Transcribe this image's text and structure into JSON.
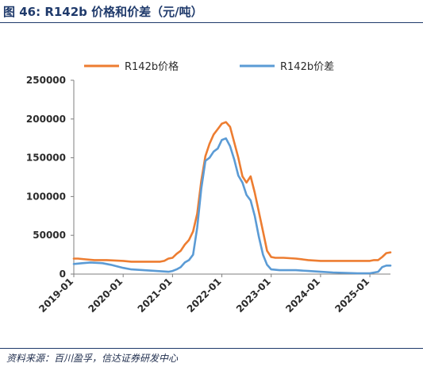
{
  "figure_title": "图 46:  R142b 价格和价差（元/吨）",
  "source_note": "资料来源：百川盈孚，信达证券研发中心",
  "colors": {
    "price": "#ED7D31",
    "spread": "#5B9BD5",
    "title": "#1F3A6B"
  },
  "chart_data": {
    "type": "line",
    "title": "",
    "xlabel": "",
    "ylabel": "",
    "ylim": [
      0,
      250000
    ],
    "y_ticks": [
      "0",
      "50000",
      "100000",
      "150000",
      "200000",
      "250000"
    ],
    "x_ticks": [
      "2019-01",
      "2020-01",
      "2021-01",
      "2022-01",
      "2023-01",
      "2024-01",
      "2025-01"
    ],
    "xlim": [
      "2019-01",
      "2025-06"
    ],
    "legend_position": "top",
    "grid": false,
    "series": [
      {
        "name": "R142b价格",
        "color": "#ED7D31",
        "x": [
          "2019-01",
          "2019-02",
          "2019-04",
          "2019-06",
          "2019-09",
          "2020-01",
          "2020-03",
          "2020-06",
          "2020-09",
          "2020-10",
          "2020-11",
          "2020-12",
          "2021-01",
          "2021-02",
          "2021-03",
          "2021-04",
          "2021-05",
          "2021-06",
          "2021-07",
          "2021-08",
          "2021-09",
          "2021-10",
          "2021-11",
          "2021-12",
          "2022-01",
          "2022-02",
          "2022-03",
          "2022-04",
          "2022-05",
          "2022-06",
          "2022-07",
          "2022-08",
          "2022-09",
          "2022-10",
          "2022-11",
          "2022-12",
          "2023-01",
          "2023-02",
          "2023-04",
          "2023-07",
          "2023-10",
          "2024-01",
          "2024-04",
          "2024-07",
          "2024-10",
          "2025-01",
          "2025-02",
          "2025-03",
          "2025-04",
          "2025-05",
          "2025-06"
        ],
        "values": [
          20000,
          20000,
          19000,
          18000,
          18000,
          17000,
          16000,
          16000,
          16000,
          16000,
          17000,
          20000,
          21000,
          26000,
          30000,
          38000,
          44000,
          55000,
          78000,
          120000,
          152000,
          168000,
          180000,
          187000,
          194000,
          196000,
          190000,
          170000,
          150000,
          126000,
          118000,
          126000,
          105000,
          80000,
          55000,
          30000,
          22000,
          21000,
          21000,
          20000,
          18000,
          17000,
          17000,
          17000,
          17000,
          17000,
          18000,
          18000,
          22000,
          27000,
          28000
        ]
      },
      {
        "name": "R142b价差",
        "color": "#5B9BD5",
        "x": [
          "2019-01",
          "2019-03",
          "2019-05",
          "2019-08",
          "2019-10",
          "2020-01",
          "2020-03",
          "2020-06",
          "2020-09",
          "2020-12",
          "2021-01",
          "2021-02",
          "2021-03",
          "2021-04",
          "2021-05",
          "2021-06",
          "2021-07",
          "2021-08",
          "2021-09",
          "2021-10",
          "2021-11",
          "2021-12",
          "2022-01",
          "2022-02",
          "2022-03",
          "2022-04",
          "2022-05",
          "2022-06",
          "2022-07",
          "2022-08",
          "2022-09",
          "2022-10",
          "2022-11",
          "2022-12",
          "2023-01",
          "2023-03",
          "2023-07",
          "2023-10",
          "2024-01",
          "2024-04",
          "2024-07",
          "2024-10",
          "2025-01",
          "2025-03",
          "2025-04",
          "2025-05",
          "2025-06"
        ],
        "values": [
          13000,
          14000,
          15000,
          14000,
          12000,
          8000,
          6000,
          5000,
          4000,
          3000,
          4000,
          6000,
          9000,
          15000,
          18000,
          25000,
          60000,
          110000,
          146000,
          150000,
          158000,
          162000,
          173000,
          175000,
          165000,
          148000,
          127000,
          118000,
          102000,
          95000,
          75000,
          48000,
          25000,
          12000,
          6000,
          5000,
          5000,
          4000,
          3000,
          2000,
          1500,
          1000,
          1000,
          3000,
          9000,
          11000,
          11000
        ]
      }
    ]
  }
}
